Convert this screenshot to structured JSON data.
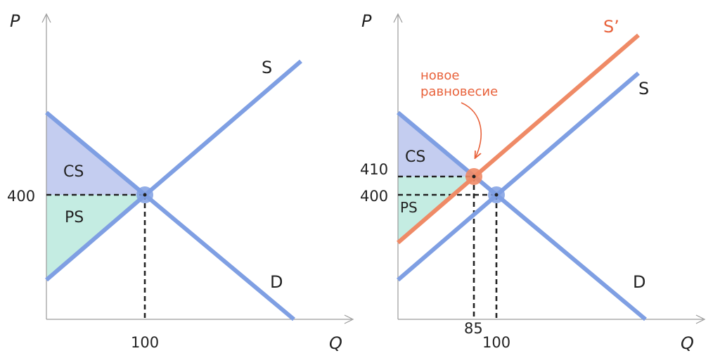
{
  "colors": {
    "axis": "#9a9a9a",
    "line_blue": "#7f9fe3",
    "line_orange": "#ef8a66",
    "cs_fill": "#c4cdf0",
    "ps_fill": "#c4ece2",
    "dash": "#222222",
    "text": "#222222",
    "orange_text": "#e8613a"
  },
  "left": {
    "axis_p": "P",
    "axis_q": "Q",
    "price_tick": "400",
    "qty_tick": "100",
    "cs_label": "CS",
    "ps_label": "PS",
    "supply_label": "S",
    "demand_label": "D"
  },
  "right": {
    "axis_p": "P",
    "axis_q": "Q",
    "price_tick_new": "410",
    "price_tick_old": "400",
    "qty_tick_new": "85",
    "qty_tick_old": "100",
    "cs_label": "CS",
    "ps_label": "PS",
    "supply_label": "S",
    "new_supply_label": "S’",
    "demand_label": "D",
    "annotation_line1": "новое",
    "annotation_line2": "равновесие"
  }
}
